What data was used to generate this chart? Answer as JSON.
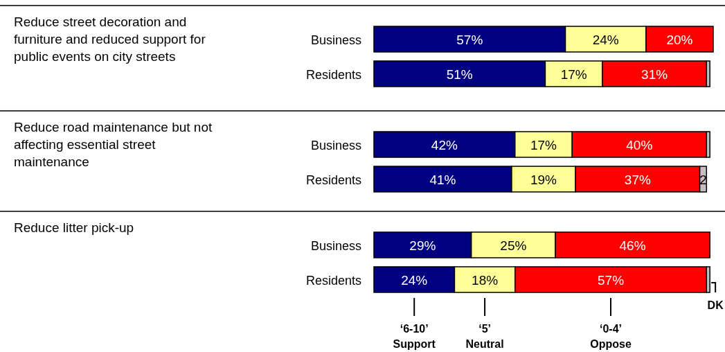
{
  "chart_data": {
    "type": "bar",
    "orientation": "horizontal",
    "stacked": true,
    "categories": [
      "Business",
      "Residents",
      "Business",
      "Residents",
      "Business",
      "Residents"
    ],
    "legend": "bottom",
    "annotations": [
      "Reduce street decoration and furniture and reduced support for public events on city streets",
      "Reduce road maintenance but not affecting essential street maintenance",
      "Reduce litter pick-up"
    ],
    "series": [
      {
        "name": "‘6-10’ Support",
        "color": "#000080",
        "values": [
          57,
          51,
          42,
          41,
          29,
          24
        ],
        "value_labels": [
          "57%",
          "51%",
          "42%",
          "41%",
          "29%",
          "24%"
        ]
      },
      {
        "name": "‘5’ Neutral",
        "color": "#ffff99",
        "values": [
          24,
          17,
          17,
          19,
          25,
          18
        ],
        "value_labels": [
          "24%",
          "17%",
          "17%",
          "19%",
          "25%",
          "18%"
        ]
      },
      {
        "name": "‘0-4’ Oppose",
        "color": "#ff0000",
        "values": [
          20,
          31,
          40,
          37,
          46,
          57
        ],
        "value_labels": [
          "20%",
          "31%",
          "40%",
          "37%",
          "46%",
          "57%"
        ]
      },
      {
        "name": "DK",
        "color": "#c0c0c0",
        "values": [
          null,
          1,
          1,
          2,
          null,
          1
        ],
        "value_labels": [
          null,
          null,
          null,
          "2",
          null,
          null
        ]
      }
    ]
  }
}
